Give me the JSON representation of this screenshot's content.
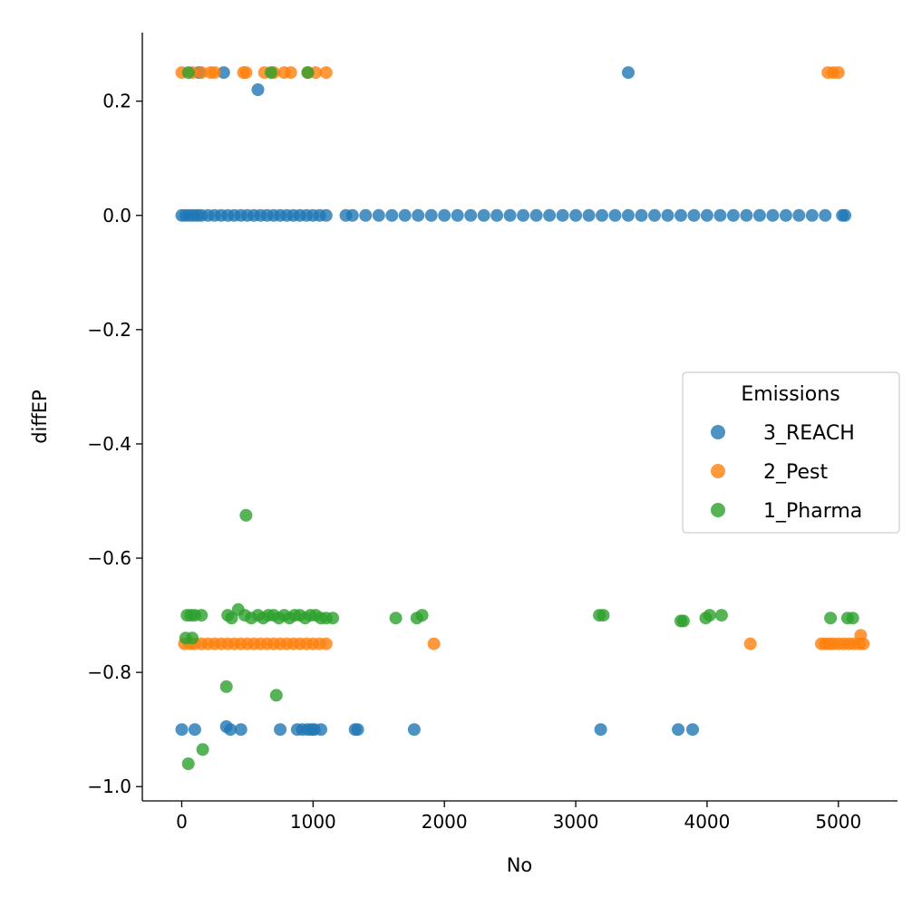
{
  "chart_data": {
    "type": "scatter",
    "title": "",
    "xlabel": "No",
    "ylabel": "diffEP",
    "xlim": [
      -300,
      5450
    ],
    "ylim": [
      -1.025,
      0.32
    ],
    "xticks": [
      0,
      1000,
      2000,
      3000,
      4000,
      5000
    ],
    "yticks": [
      0.2,
      0.0,
      -0.2,
      -0.4,
      -0.6,
      -0.8,
      -1.0
    ],
    "xtick_labels": [
      "0",
      "1000",
      "2000",
      "3000",
      "4000",
      "5000"
    ],
    "ytick_labels": [
      "0.2",
      "0.0",
      "−0.2",
      "−0.4",
      "−0.6",
      "−0.8",
      "−1.0"
    ],
    "grid": false,
    "legend": {
      "title": "Emissions",
      "placement": "right"
    },
    "series": [
      {
        "name": "3_REACH",
        "color": "#1f77b4",
        "points": [
          [
            0,
            0.0
          ],
          [
            30,
            0.0
          ],
          [
            60,
            0.0
          ],
          [
            90,
            0.0
          ],
          [
            120,
            0.0
          ],
          [
            150,
            0.0
          ],
          [
            200,
            0.0
          ],
          [
            250,
            0.0
          ],
          [
            300,
            0.0
          ],
          [
            350,
            0.0
          ],
          [
            400,
            0.0
          ],
          [
            450,
            0.0
          ],
          [
            500,
            0.0
          ],
          [
            550,
            0.0
          ],
          [
            600,
            0.0
          ],
          [
            650,
            0.0
          ],
          [
            700,
            0.0
          ],
          [
            750,
            0.0
          ],
          [
            800,
            0.0
          ],
          [
            850,
            0.0
          ],
          [
            900,
            0.0
          ],
          [
            950,
            0.0
          ],
          [
            1000,
            0.0
          ],
          [
            1050,
            0.0
          ],
          [
            1100,
            0.0
          ],
          [
            1250,
            0.0
          ],
          [
            1300,
            0.0
          ],
          [
            1400,
            0.0
          ],
          [
            1500,
            0.0
          ],
          [
            1600,
            0.0
          ],
          [
            1700,
            0.0
          ],
          [
            1800,
            0.0
          ],
          [
            1900,
            0.0
          ],
          [
            2000,
            0.0
          ],
          [
            2100,
            0.0
          ],
          [
            2200,
            0.0
          ],
          [
            2300,
            0.0
          ],
          [
            2400,
            0.0
          ],
          [
            2500,
            0.0
          ],
          [
            2600,
            0.0
          ],
          [
            2700,
            0.0
          ],
          [
            2800,
            0.0
          ],
          [
            2900,
            0.0
          ],
          [
            3000,
            0.0
          ],
          [
            3100,
            0.0
          ],
          [
            3200,
            0.0
          ],
          [
            3300,
            0.0
          ],
          [
            3400,
            0.0
          ],
          [
            3500,
            0.0
          ],
          [
            3600,
            0.0
          ],
          [
            3700,
            0.0
          ],
          [
            3800,
            0.0
          ],
          [
            3900,
            0.0
          ],
          [
            4000,
            0.0
          ],
          [
            4100,
            0.0
          ],
          [
            4200,
            0.0
          ],
          [
            4300,
            0.0
          ],
          [
            4400,
            0.0
          ],
          [
            4500,
            0.0
          ],
          [
            4600,
            0.0
          ],
          [
            4700,
            0.0
          ],
          [
            4800,
            0.0
          ],
          [
            4900,
            0.0
          ],
          [
            5030,
            0.0
          ],
          [
            5050,
            0.0
          ],
          [
            130,
            0.25
          ],
          [
            320,
            0.25
          ],
          [
            3400,
            0.25
          ],
          [
            580,
            0.22
          ],
          [
            0,
            -0.9
          ],
          [
            100,
            -0.9
          ],
          [
            340,
            -0.895
          ],
          [
            370,
            -0.9
          ],
          [
            450,
            -0.9
          ],
          [
            750,
            -0.9
          ],
          [
            880,
            -0.9
          ],
          [
            920,
            -0.9
          ],
          [
            960,
            -0.9
          ],
          [
            990,
            -0.9
          ],
          [
            1010,
            -0.9
          ],
          [
            1060,
            -0.9
          ],
          [
            1320,
            -0.9
          ],
          [
            1340,
            -0.9
          ],
          [
            1770,
            -0.9
          ],
          [
            3190,
            -0.9
          ],
          [
            3780,
            -0.9
          ],
          [
            3890,
            -0.9
          ]
        ]
      },
      {
        "name": "2_Pest",
        "color": "#ff7f0e",
        "points": [
          [
            0,
            0.25
          ],
          [
            80,
            0.25
          ],
          [
            150,
            0.25
          ],
          [
            220,
            0.25
          ],
          [
            250,
            0.25
          ],
          [
            470,
            0.25
          ],
          [
            490,
            0.25
          ],
          [
            630,
            0.25
          ],
          [
            700,
            0.25
          ],
          [
            780,
            0.25
          ],
          [
            830,
            0.25
          ],
          [
            960,
            0.25
          ],
          [
            1020,
            0.25
          ],
          [
            1100,
            0.25
          ],
          [
            20,
            -0.75
          ],
          [
            60,
            -0.75
          ],
          [
            100,
            -0.75
          ],
          [
            150,
            -0.75
          ],
          [
            200,
            -0.75
          ],
          [
            250,
            -0.75
          ],
          [
            300,
            -0.75
          ],
          [
            350,
            -0.75
          ],
          [
            400,
            -0.75
          ],
          [
            450,
            -0.75
          ],
          [
            500,
            -0.75
          ],
          [
            550,
            -0.75
          ],
          [
            600,
            -0.75
          ],
          [
            650,
            -0.75
          ],
          [
            700,
            -0.75
          ],
          [
            750,
            -0.75
          ],
          [
            800,
            -0.75
          ],
          [
            850,
            -0.75
          ],
          [
            900,
            -0.75
          ],
          [
            950,
            -0.75
          ],
          [
            1000,
            -0.75
          ],
          [
            1050,
            -0.75
          ],
          [
            1100,
            -0.75
          ],
          [
            1920,
            -0.75
          ],
          [
            4330,
            -0.75
          ],
          [
            4870,
            -0.75
          ],
          [
            4900,
            -0.75
          ],
          [
            4930,
            -0.75
          ],
          [
            4960,
            -0.75
          ],
          [
            5000,
            -0.75
          ],
          [
            5040,
            -0.75
          ],
          [
            5080,
            -0.75
          ],
          [
            5120,
            -0.75
          ],
          [
            5160,
            -0.75
          ],
          [
            5190,
            -0.75
          ],
          [
            4920,
            0.25
          ],
          [
            4960,
            0.25
          ],
          [
            5000,
            0.25
          ],
          [
            5170,
            -0.735
          ]
        ]
      },
      {
        "name": "1_Pharma",
        "color": "#2ca02c",
        "points": [
          [
            50,
            0.25
          ],
          [
            680,
            0.25
          ],
          [
            960,
            0.25
          ],
          [
            490,
            -0.525
          ],
          [
            40,
            -0.7
          ],
          [
            70,
            -0.7
          ],
          [
            100,
            -0.7
          ],
          [
            150,
            -0.7
          ],
          [
            350,
            -0.7
          ],
          [
            380,
            -0.705
          ],
          [
            430,
            -0.69
          ],
          [
            480,
            -0.7
          ],
          [
            530,
            -0.705
          ],
          [
            580,
            -0.7
          ],
          [
            620,
            -0.705
          ],
          [
            660,
            -0.7
          ],
          [
            700,
            -0.7
          ],
          [
            740,
            -0.705
          ],
          [
            780,
            -0.7
          ],
          [
            820,
            -0.705
          ],
          [
            860,
            -0.7
          ],
          [
            900,
            -0.7
          ],
          [
            940,
            -0.705
          ],
          [
            980,
            -0.7
          ],
          [
            1020,
            -0.7
          ],
          [
            1060,
            -0.705
          ],
          [
            1100,
            -0.705
          ],
          [
            1150,
            -0.705
          ],
          [
            1630,
            -0.705
          ],
          [
            1790,
            -0.705
          ],
          [
            1830,
            -0.7
          ],
          [
            3180,
            -0.7
          ],
          [
            3210,
            -0.7
          ],
          [
            3800,
            -0.71
          ],
          [
            3820,
            -0.71
          ],
          [
            3990,
            -0.705
          ],
          [
            4020,
            -0.7
          ],
          [
            4110,
            -0.7
          ],
          [
            4940,
            -0.705
          ],
          [
            5070,
            -0.705
          ],
          [
            5110,
            -0.705
          ],
          [
            30,
            -0.74
          ],
          [
            80,
            -0.74
          ],
          [
            340,
            -0.825
          ],
          [
            720,
            -0.84
          ],
          [
            160,
            -0.935
          ],
          [
            50,
            -0.96
          ]
        ]
      }
    ]
  }
}
